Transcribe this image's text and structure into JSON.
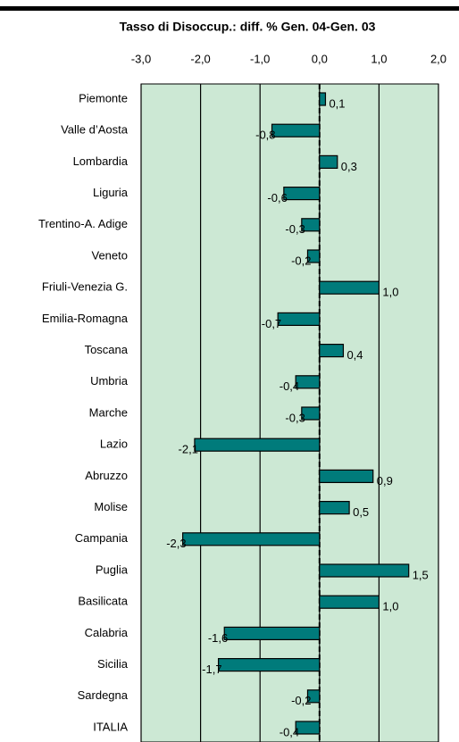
{
  "chart_data": {
    "type": "bar",
    "orientation": "horizontal",
    "title": "Tasso di Disoccup.: diff. % Gen. 04-Gen. 03",
    "categories": [
      "Piemonte",
      "Valle d’Aosta",
      "Lombardia",
      "Liguria",
      "Trentino-A. Adige",
      "Veneto",
      "Friuli-Venezia G.",
      "Emilia-Romagna",
      "Toscana",
      "Umbria",
      "Marche",
      "Lazio",
      "Abruzzo",
      "Molise",
      "Campania",
      "Puglia",
      "Basilicata",
      "Calabria",
      "Sicilia",
      "Sardegna",
      "ITALIA"
    ],
    "values": [
      0.1,
      -0.8,
      0.3,
      -0.6,
      -0.3,
      -0.2,
      1.0,
      -0.7,
      0.4,
      -0.4,
      -0.3,
      -2.1,
      0.9,
      0.5,
      -2.3,
      1.5,
      1.0,
      -1.6,
      -1.7,
      -0.2,
      -0.4
    ],
    "value_labels": [
      "0,1",
      "-0,8",
      "0,3",
      "-0,6",
      "-0,3",
      "-0,2",
      "1,0",
      "-0,7",
      "0,4",
      "-0,4",
      "-0,3",
      "-2,1",
      "0,9",
      "0,5",
      "-2,3",
      "1,5",
      "1,0",
      "-1,6",
      "-1,7",
      "-0,2",
      "-0,4"
    ],
    "color": "#007b7b",
    "xlim": [
      -3,
      2
    ],
    "xticks": [
      {
        "value": -3,
        "label": "-3,0"
      },
      {
        "value": -2,
        "label": "-2,0"
      },
      {
        "value": -1,
        "label": "-1,0"
      },
      {
        "value": 0,
        "label": "0,0"
      },
      {
        "value": 1,
        "label": "1,0"
      },
      {
        "value": 2,
        "label": "2,0"
      }
    ],
    "grid": true
  }
}
